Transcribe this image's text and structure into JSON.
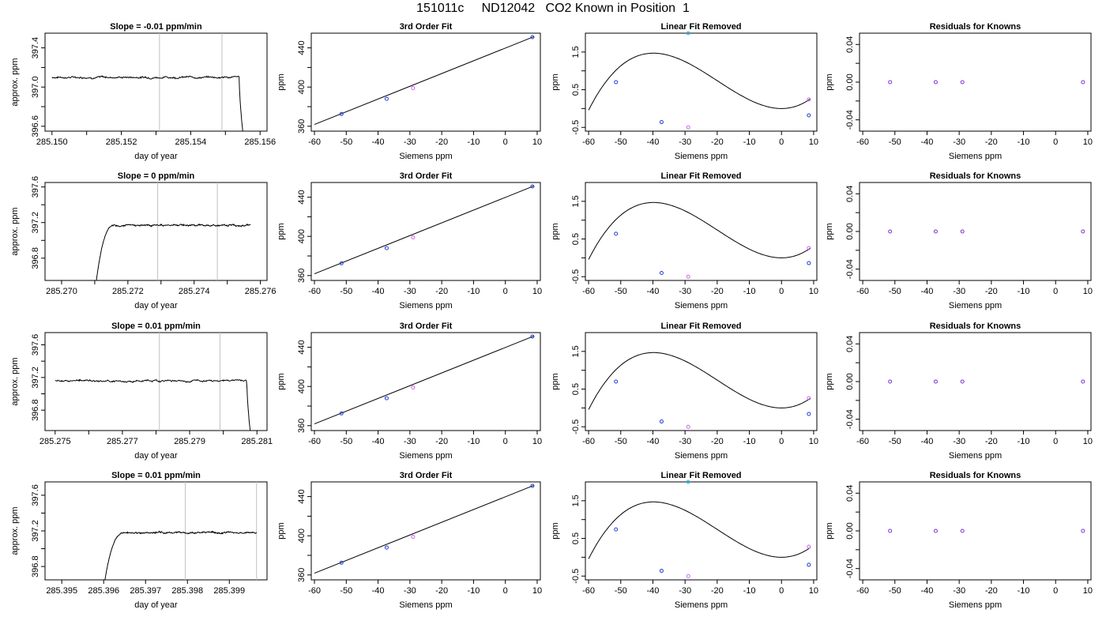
{
  "figure": {
    "title": "151011c     ND12042   CO2 Known in Position  1"
  },
  "chart_data": [
    {
      "row": 1,
      "type": "line",
      "title": "Slope =  -0.01  ppm/min",
      "xlabel": "day of year",
      "ylabel": "approx. ppm",
      "xlim": [
        285.1498,
        285.1562
      ],
      "ylim": [
        396.55,
        397.55
      ],
      "xticks": [
        285.15,
        285.151,
        285.152,
        285.153,
        285.154,
        285.155,
        285.156
      ],
      "xticklabels": [
        "285.150",
        "",
        "285.152",
        "",
        "285.154",
        "",
        "285.156"
      ],
      "yticks": [
        396.6,
        396.8,
        397.0,
        397.2,
        397.4
      ],
      "yticklabels": [
        "396.6",
        "",
        "397.0",
        "",
        "397.4"
      ],
      "vlines": [
        285.1531,
        285.1549
      ],
      "grid": false,
      "series": [
        {
          "base": 397.1,
          "start_x": 285.15,
          "rise_x": null,
          "drop_x": 285.1554,
          "end_x": 285.1555,
          "end_y": 396.55,
          "noise": 0.012
        }
      ]
    },
    {
      "row": 1,
      "type": "scatter",
      "title": "3rd Order Fit",
      "xlabel": "Siemens ppm",
      "ylabel": "ppm",
      "xlim": [
        -61,
        11
      ],
      "ylim": [
        355,
        455
      ],
      "xticks": [
        -60,
        -50,
        -40,
        -30,
        -20,
        -10,
        0,
        10
      ],
      "xticklabels": [
        "-60",
        "-50",
        "-40",
        "-30",
        "-20",
        "-10",
        "0",
        "10"
      ],
      "yticks": [
        360,
        380,
        400,
        420,
        440
      ],
      "yticklabels": [
        "360",
        "",
        "400",
        "",
        "440"
      ],
      "line": {
        "x": [
          -60,
          9
        ],
        "y": [
          361.8,
          451.5
        ]
      },
      "points": [
        {
          "x": -51.5,
          "y": 372.5,
          "color": "#1f3fd6"
        },
        {
          "x": -37.3,
          "y": 388.0,
          "color": "#1f3fd6"
        },
        {
          "x": -29.0,
          "y": 399.0,
          "color": "#cc66ee"
        },
        {
          "x": 8.5,
          "y": 451.0,
          "color": "#1f3fd6"
        }
      ]
    },
    {
      "row": 1,
      "type": "line",
      "title": "Linear Fit Removed",
      "xlabel": "Siemens ppm",
      "ylabel": "ppm",
      "xlim": [
        -61,
        11
      ],
      "ylim": [
        -0.6,
        2.0
      ],
      "xticks": [
        -60,
        -50,
        -40,
        -30,
        -20,
        -10,
        0,
        10
      ],
      "xticklabels": [
        "-60",
        "-50",
        "-40",
        "-30",
        "-20",
        "-10",
        "0",
        "10"
      ],
      "yticks": [
        -0.5,
        0,
        0.5,
        1.0,
        1.5
      ],
      "yticklabels": [
        "-0.5",
        "",
        "0.5",
        "",
        "1.5"
      ],
      "curve": {
        "a": 4.65e-05,
        "b": 0.002778,
        "c": 0,
        "d": 0
      },
      "points": [
        {
          "x": -51.5,
          "y": 0.7,
          "color": "#1f3fd6"
        },
        {
          "x": -37.3,
          "y": -0.36,
          "color": "#1f3fd6"
        },
        {
          "x": -29.0,
          "y": -0.5,
          "color": "#cc66ee"
        },
        {
          "x": 8.5,
          "y": 0.24,
          "color": "#cc66ee"
        },
        {
          "x": 8.5,
          "y": -0.18,
          "color": "#1f3fd6"
        },
        {
          "x": -29.0,
          "y": 2.0,
          "color": "#22bbdd"
        }
      ]
    },
    {
      "row": 1,
      "type": "scatter",
      "title": "Residuals for Knowns",
      "xlabel": "Siemens ppm",
      "ylabel": "ppm",
      "xlim": [
        -61,
        11
      ],
      "ylim": [
        -0.052,
        0.052
      ],
      "xticks": [
        -60,
        -50,
        -40,
        -30,
        -20,
        -10,
        0,
        10
      ],
      "xticklabels": [
        "-60",
        "-50",
        "-40",
        "-30",
        "-20",
        "-10",
        "0",
        "10"
      ],
      "yticks": [
        -0.04,
        -0.02,
        0.0,
        0.02,
        0.04
      ],
      "yticklabels": [
        "-0.04",
        "",
        "0.00",
        "",
        "0.04"
      ],
      "points": [
        {
          "x": -51.5,
          "y": 0,
          "color": "#7a33cc"
        },
        {
          "x": -37.3,
          "y": 0,
          "color": "#7a33cc"
        },
        {
          "x": -29.0,
          "y": 0,
          "color": "#7a33cc"
        },
        {
          "x": 8.5,
          "y": 0,
          "color": "#7a33cc"
        }
      ]
    },
    {
      "row": 2,
      "type": "line",
      "title": "Slope =  0  ppm/min",
      "xlabel": "day of year",
      "ylabel": "approx. ppm",
      "xlim": [
        285.2695,
        285.2762
      ],
      "ylim": [
        396.55,
        397.65
      ],
      "xticks": [
        285.27,
        285.271,
        285.272,
        285.273,
        285.274,
        285.275,
        285.276
      ],
      "xticklabels": [
        "285.270",
        "",
        "285.272",
        "",
        "285.274",
        "",
        "285.276"
      ],
      "yticks": [
        396.8,
        397.0,
        397.2,
        397.4,
        397.6
      ],
      "yticklabels": [
        "396.8",
        "",
        "397.2",
        "",
        "397.6"
      ],
      "vlines": [
        285.2729,
        285.2747
      ],
      "grid": false,
      "series": [
        {
          "base": 397.17,
          "start_x": 285.27105,
          "rise_x": 285.2716,
          "drop_x": null,
          "end_x": 285.2757,
          "end_y": null,
          "noise": 0.012
        }
      ]
    },
    {
      "row": 2,
      "type": "scatter",
      "title": "3rd Order Fit",
      "xlabel": "Siemens ppm",
      "ylabel": "ppm",
      "xlim": [
        -61,
        11
      ],
      "ylim": [
        355,
        455
      ],
      "xticks": [
        -60,
        -50,
        -40,
        -30,
        -20,
        -10,
        0,
        10
      ],
      "xticklabels": [
        "-60",
        "-50",
        "-40",
        "-30",
        "-20",
        "-10",
        "0",
        "10"
      ],
      "yticks": [
        360,
        380,
        400,
        420,
        440
      ],
      "yticklabels": [
        "360",
        "",
        "400",
        "",
        "440"
      ],
      "line": {
        "x": [
          -60,
          9
        ],
        "y": [
          361.8,
          451.5
        ]
      },
      "points": [
        {
          "x": -51.5,
          "y": 372.5,
          "color": "#1f3fd6"
        },
        {
          "x": -37.3,
          "y": 388.0,
          "color": "#1f3fd6"
        },
        {
          "x": -29.0,
          "y": 399.0,
          "color": "#cc66ee"
        },
        {
          "x": 8.5,
          "y": 451.0,
          "color": "#1f3fd6"
        }
      ]
    },
    {
      "row": 2,
      "type": "line",
      "title": "Linear Fit Removed",
      "xlabel": "Siemens ppm",
      "ylabel": "ppm",
      "xlim": [
        -61,
        11
      ],
      "ylim": [
        -0.6,
        2.0
      ],
      "xticks": [
        -60,
        -50,
        -40,
        -30,
        -20,
        -10,
        0,
        10
      ],
      "xticklabels": [
        "-60",
        "-50",
        "-40",
        "-30",
        "-20",
        "-10",
        "0",
        "10"
      ],
      "yticks": [
        -0.5,
        0,
        0.5,
        1.0,
        1.5
      ],
      "yticklabels": [
        "-0.5",
        "",
        "0.5",
        "",
        "1.5"
      ],
      "curve": {
        "a": 4.65e-05,
        "b": 0.002778,
        "c": 0,
        "d": 0
      },
      "points": [
        {
          "x": -51.5,
          "y": 0.64,
          "color": "#1f3fd6"
        },
        {
          "x": -37.3,
          "y": -0.4,
          "color": "#1f3fd6"
        },
        {
          "x": -29.0,
          "y": -0.5,
          "color": "#cc66ee"
        },
        {
          "x": 8.5,
          "y": 0.26,
          "color": "#cc66ee"
        },
        {
          "x": 8.5,
          "y": -0.14,
          "color": "#1f3fd6"
        }
      ]
    },
    {
      "row": 2,
      "type": "scatter",
      "title": "Residuals for Knowns",
      "xlabel": "Siemens ppm",
      "ylabel": "ppm",
      "xlim": [
        -61,
        11
      ],
      "ylim": [
        -0.052,
        0.052
      ],
      "xticks": [
        -60,
        -50,
        -40,
        -30,
        -20,
        -10,
        0,
        10
      ],
      "xticklabels": [
        "-60",
        "-50",
        "-40",
        "-30",
        "-20",
        "-10",
        "0",
        "10"
      ],
      "yticks": [
        -0.04,
        -0.02,
        0.0,
        0.02,
        0.04
      ],
      "yticklabels": [
        "-0.04",
        "",
        "0.00",
        "",
        "0.04"
      ],
      "points": [
        {
          "x": -51.5,
          "y": 0,
          "color": "#7a33cc"
        },
        {
          "x": -37.3,
          "y": 0,
          "color": "#7a33cc"
        },
        {
          "x": -29.0,
          "y": 0,
          "color": "#7a33cc"
        },
        {
          "x": 8.5,
          "y": 0,
          "color": "#7a33cc"
        }
      ]
    },
    {
      "row": 3,
      "type": "line",
      "title": "Slope =  0.01  ppm/min",
      "xlabel": "day of year",
      "ylabel": "approx. ppm",
      "xlim": [
        285.2747,
        285.2813
      ],
      "ylim": [
        396.55,
        397.75
      ],
      "xticks": [
        285.275,
        285.276,
        285.277,
        285.278,
        285.279,
        285.28,
        285.281
      ],
      "xticklabels": [
        "285.275",
        "",
        "285.277",
        "",
        "285.279",
        "",
        "285.281"
      ],
      "yticks": [
        396.8,
        397.0,
        397.2,
        397.4,
        397.6
      ],
      "yticklabels": [
        "396.8",
        "",
        "397.2",
        "",
        "397.6"
      ],
      "vlines": [
        285.2781,
        285.2799
      ],
      "grid": false,
      "series": [
        {
          "base": 397.16,
          "start_x": 285.275,
          "rise_x": null,
          "drop_x": 285.2807,
          "end_x": 285.2808,
          "end_y": 396.55,
          "noise": 0.014
        }
      ]
    },
    {
      "row": 3,
      "type": "scatter",
      "title": "3rd Order Fit",
      "xlabel": "Siemens ppm",
      "ylabel": "ppm",
      "xlim": [
        -61,
        11
      ],
      "ylim": [
        355,
        455
      ],
      "xticks": [
        -60,
        -50,
        -40,
        -30,
        -20,
        -10,
        0,
        10
      ],
      "xticklabels": [
        "-60",
        "-50",
        "-40",
        "-30",
        "-20",
        "-10",
        "0",
        "10"
      ],
      "yticks": [
        360,
        380,
        400,
        420,
        440
      ],
      "yticklabels": [
        "360",
        "",
        "400",
        "",
        "440"
      ],
      "line": {
        "x": [
          -60,
          9
        ],
        "y": [
          361.8,
          451.5
        ]
      },
      "points": [
        {
          "x": -51.5,
          "y": 372.5,
          "color": "#1f3fd6"
        },
        {
          "x": -37.3,
          "y": 388.0,
          "color": "#1f3fd6"
        },
        {
          "x": -29.0,
          "y": 399.0,
          "color": "#cc66ee"
        },
        {
          "x": 8.5,
          "y": 451.0,
          "color": "#1f3fd6"
        }
      ]
    },
    {
      "row": 3,
      "type": "line",
      "title": "Linear Fit Removed",
      "xlabel": "Siemens ppm",
      "ylabel": "ppm",
      "xlim": [
        -61,
        11
      ],
      "ylim": [
        -0.6,
        2.0
      ],
      "xticks": [
        -60,
        -50,
        -40,
        -30,
        -20,
        -10,
        0,
        10
      ],
      "xticklabels": [
        "-60",
        "-50",
        "-40",
        "-30",
        "-20",
        "-10",
        "0",
        "10"
      ],
      "yticks": [
        -0.5,
        0,
        0.5,
        1.0,
        1.5
      ],
      "yticklabels": [
        "-0.5",
        "",
        "0.5",
        "",
        "1.5"
      ],
      "curve": {
        "a": 4.65e-05,
        "b": 0.002778,
        "c": 0,
        "d": 0
      },
      "points": [
        {
          "x": -51.5,
          "y": 0.7,
          "color": "#1f3fd6"
        },
        {
          "x": -37.3,
          "y": -0.36,
          "color": "#1f3fd6"
        },
        {
          "x": -29.0,
          "y": -0.5,
          "color": "#cc66ee"
        },
        {
          "x": 8.5,
          "y": 0.26,
          "color": "#cc66ee"
        },
        {
          "x": 8.5,
          "y": -0.16,
          "color": "#1f3fd6"
        }
      ]
    },
    {
      "row": 3,
      "type": "scatter",
      "title": "Residuals for Knowns",
      "xlabel": "Siemens ppm",
      "ylabel": "ppm",
      "xlim": [
        -61,
        11
      ],
      "ylim": [
        -0.052,
        0.052
      ],
      "xticks": [
        -60,
        -50,
        -40,
        -30,
        -20,
        -10,
        0,
        10
      ],
      "xticklabels": [
        "-60",
        "-50",
        "-40",
        "-30",
        "-20",
        "-10",
        "0",
        "10"
      ],
      "yticks": [
        -0.04,
        -0.02,
        0.0,
        0.02,
        0.04
      ],
      "yticklabels": [
        "-0.04",
        "",
        "0.00",
        "",
        "0.04"
      ],
      "points": [
        {
          "x": -51.5,
          "y": 0,
          "color": "#7a33cc"
        },
        {
          "x": -37.3,
          "y": 0,
          "color": "#7a33cc"
        },
        {
          "x": -29.0,
          "y": 0,
          "color": "#7a33cc"
        },
        {
          "x": 8.5,
          "y": 0,
          "color": "#7a33cc"
        }
      ]
    },
    {
      "row": 4,
      "type": "line",
      "title": "Slope =  0.01  ppm/min",
      "xlabel": "day of year",
      "ylabel": "approx. ppm",
      "xlim": [
        285.3946,
        285.3999
      ],
      "ylim": [
        396.65,
        397.75
      ],
      "xticks": [
        285.395,
        285.396,
        285.397,
        285.398,
        285.399
      ],
      "xticklabels": [
        "285.395",
        "285.396",
        "285.397",
        "285.398",
        "285.399"
      ],
      "yticks": [
        396.8,
        397.0,
        397.2,
        397.4,
        397.6
      ],
      "yticklabels": [
        "396.8",
        "",
        "397.2",
        "",
        "397.6"
      ],
      "vlines": [
        285.39795,
        285.39965
      ],
      "grid": false,
      "series": [
        {
          "base": 397.18,
          "start_x": 285.39603,
          "rise_x": 285.3965,
          "drop_x": null,
          "end_x": 285.39965,
          "end_y": null,
          "noise": 0.012
        }
      ]
    },
    {
      "row": 4,
      "type": "scatter",
      "title": "3rd Order Fit",
      "xlabel": "Siemens ppm",
      "ylabel": "ppm",
      "xlim": [
        -61,
        11
      ],
      "ylim": [
        355,
        455
      ],
      "xticks": [
        -60,
        -50,
        -40,
        -30,
        -20,
        -10,
        0,
        10
      ],
      "xticklabels": [
        "-60",
        "-50",
        "-40",
        "-30",
        "-20",
        "-10",
        "0",
        "10"
      ],
      "yticks": [
        360,
        380,
        400,
        420,
        440
      ],
      "yticklabels": [
        "360",
        "",
        "400",
        "",
        "440"
      ],
      "line": {
        "x": [
          -60,
          9
        ],
        "y": [
          361.8,
          451.5
        ]
      },
      "points": [
        {
          "x": -51.5,
          "y": 372.5,
          "color": "#1f3fd6"
        },
        {
          "x": -37.3,
          "y": 388.0,
          "color": "#1f3fd6"
        },
        {
          "x": -29.0,
          "y": 399.0,
          "color": "#cc66ee"
        },
        {
          "x": 8.5,
          "y": 451.0,
          "color": "#1f3fd6"
        }
      ]
    },
    {
      "row": 4,
      "type": "line",
      "title": "Linear Fit Removed",
      "xlabel": "Siemens ppm",
      "ylabel": "ppm",
      "xlim": [
        -61,
        11
      ],
      "ylim": [
        -0.6,
        2.0
      ],
      "xticks": [
        -60,
        -50,
        -40,
        -30,
        -20,
        -10,
        0,
        10
      ],
      "xticklabels": [
        "-60",
        "-50",
        "-40",
        "-30",
        "-20",
        "-10",
        "0",
        "10"
      ],
      "yticks": [
        -0.5,
        0,
        0.5,
        1.0,
        1.5
      ],
      "yticklabels": [
        "-0.5",
        "",
        "0.5",
        "",
        "1.5"
      ],
      "curve": {
        "a": 4.65e-05,
        "b": 0.002778,
        "c": 0,
        "d": 0
      },
      "points": [
        {
          "x": -51.5,
          "y": 0.74,
          "color": "#1f3fd6"
        },
        {
          "x": -37.3,
          "y": -0.36,
          "color": "#1f3fd6"
        },
        {
          "x": -29.0,
          "y": -0.5,
          "color": "#cc66ee"
        },
        {
          "x": 8.5,
          "y": 0.28,
          "color": "#cc66ee"
        },
        {
          "x": 8.5,
          "y": -0.2,
          "color": "#1f3fd6"
        },
        {
          "x": -29.0,
          "y": 2.0,
          "color": "#22bbdd"
        }
      ]
    },
    {
      "row": 4,
      "type": "scatter",
      "title": "Residuals for Knowns",
      "xlabel": "Siemens ppm",
      "ylabel": "ppm",
      "xlim": [
        -61,
        11
      ],
      "ylim": [
        -0.052,
        0.052
      ],
      "xticks": [
        -60,
        -50,
        -40,
        -30,
        -20,
        -10,
        0,
        10
      ],
      "xticklabels": [
        "-60",
        "-50",
        "-40",
        "-30",
        "-20",
        "-10",
        "0",
        "10"
      ],
      "yticks": [
        -0.04,
        -0.02,
        0.0,
        0.02,
        0.04
      ],
      "yticklabels": [
        "-0.04",
        "",
        "0.00",
        "",
        "0.04"
      ],
      "points": [
        {
          "x": -51.5,
          "y": 0,
          "color": "#7a33cc"
        },
        {
          "x": -37.3,
          "y": 0,
          "color": "#7a33cc"
        },
        {
          "x": -29.0,
          "y": 0,
          "color": "#7a33cc"
        },
        {
          "x": 8.5,
          "y": 0,
          "color": "#7a33cc"
        }
      ]
    }
  ]
}
